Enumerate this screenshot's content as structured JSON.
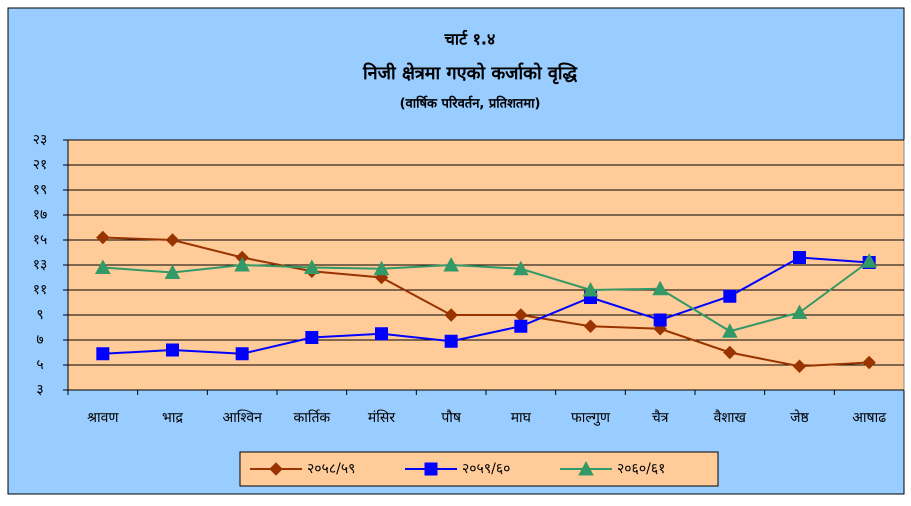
{
  "chart_data": {
    "type": "line",
    "title": "चार्ट १.४",
    "subtitle": "निजी क्षेत्रमा गएको कर्जाको वृद्धि",
    "note": "(वार्षिक परिवर्तन, प्रतिशतमा)",
    "categories": [
      "श्रावण",
      "भाद्र",
      "आश्विन",
      "कार्तिक",
      "मंसिर",
      "पौष",
      "माघ",
      "फाल्गुण",
      "चैत्र",
      "वैशाख",
      "जेष्ठ",
      "आषाढ"
    ],
    "series": [
      {
        "name": "२०५८/५९",
        "color": "#993300",
        "marker": "diamond",
        "values": [
          15.2,
          15.0,
          13.6,
          12.5,
          12.0,
          9.0,
          9.0,
          8.1,
          7.9,
          6.0,
          4.9,
          5.2
        ]
      },
      {
        "name": "२०५९/६०",
        "color": "#0000ff",
        "marker": "square",
        "values": [
          5.9,
          6.2,
          5.9,
          7.2,
          7.5,
          6.9,
          8.1,
          10.4,
          8.6,
          10.5,
          13.6,
          13.2
        ]
      },
      {
        "name": "२०६०/६१",
        "color": "#339966",
        "marker": "triangle",
        "values": [
          12.8,
          12.4,
          13.0,
          12.8,
          12.7,
          13.0,
          12.7,
          11.0,
          11.1,
          7.7,
          9.2,
          13.3
        ]
      }
    ],
    "ylim": [
      3,
      23
    ],
    "yticks": [
      {
        "value": 3,
        "label": "३"
      },
      {
        "value": 5,
        "label": "५"
      },
      {
        "value": 7,
        "label": "७"
      },
      {
        "value": 9,
        "label": "९"
      },
      {
        "value": 11,
        "label": "११"
      },
      {
        "value": 13,
        "label": "१३"
      },
      {
        "value": 15,
        "label": "१५"
      },
      {
        "value": 17,
        "label": "१७"
      },
      {
        "value": 19,
        "label": "१९"
      },
      {
        "value": 21,
        "label": "२१"
      },
      {
        "value": 23,
        "label": "२३"
      }
    ],
    "grid": true,
    "legend": "bottom"
  }
}
